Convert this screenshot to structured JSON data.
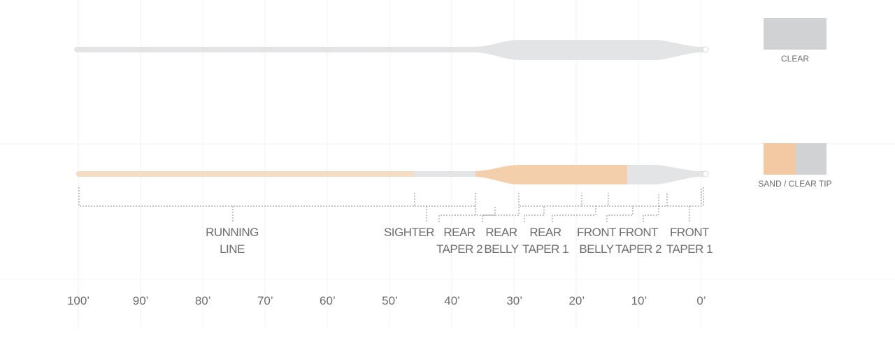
{
  "swatches": [
    {
      "label": "CLEAR"
    },
    {
      "label": "SAND / CLEAR TIP"
    }
  ],
  "segments": [
    {
      "lines": [
        "RUNNING",
        "LINE"
      ]
    },
    {
      "lines": [
        "SIGHTER"
      ]
    },
    {
      "lines": [
        "REAR",
        "TAPER 2"
      ]
    },
    {
      "lines": [
        "REAR",
        "BELLY"
      ]
    },
    {
      "lines": [
        "REAR",
        "TAPER 1"
      ]
    },
    {
      "lines": [
        "FRONT",
        "BELLY"
      ]
    },
    {
      "lines": [
        "FRONT",
        "TAPER 2"
      ]
    },
    {
      "lines": [
        "FRONT",
        "TAPER 1"
      ]
    }
  ],
  "scale": [
    "100’",
    "90’",
    "80’",
    "70’",
    "60’",
    "50’",
    "40’",
    "30’",
    "20’",
    "10’",
    "0’"
  ]
}
